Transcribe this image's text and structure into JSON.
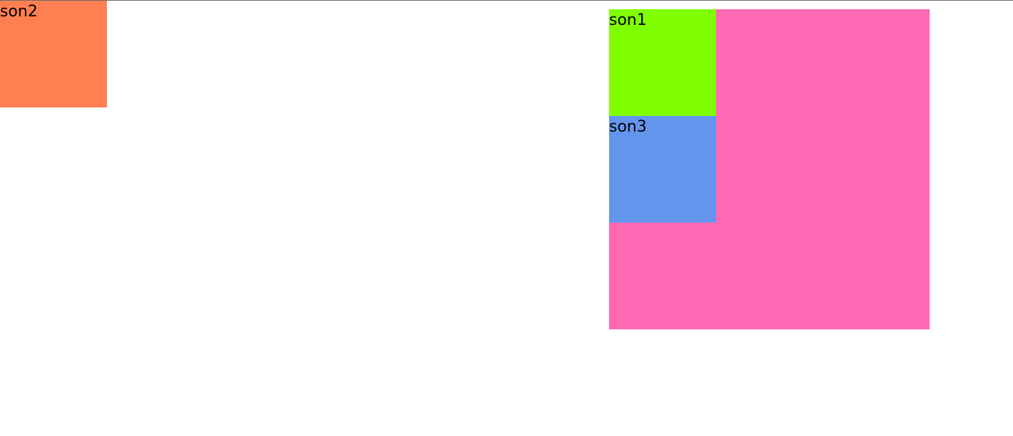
{
  "boxes": {
    "son2": {
      "label": "son2",
      "color": "#FF7F50"
    },
    "father": {
      "label": "",
      "color": "#FF69B4"
    },
    "son1": {
      "label": "son1",
      "color": "#7FFF00"
    },
    "son3": {
      "label": "son3",
      "color": "#6495ED"
    }
  },
  "page": {
    "background": "#FFFFFF",
    "top_border_color": "#6B6B6B"
  }
}
